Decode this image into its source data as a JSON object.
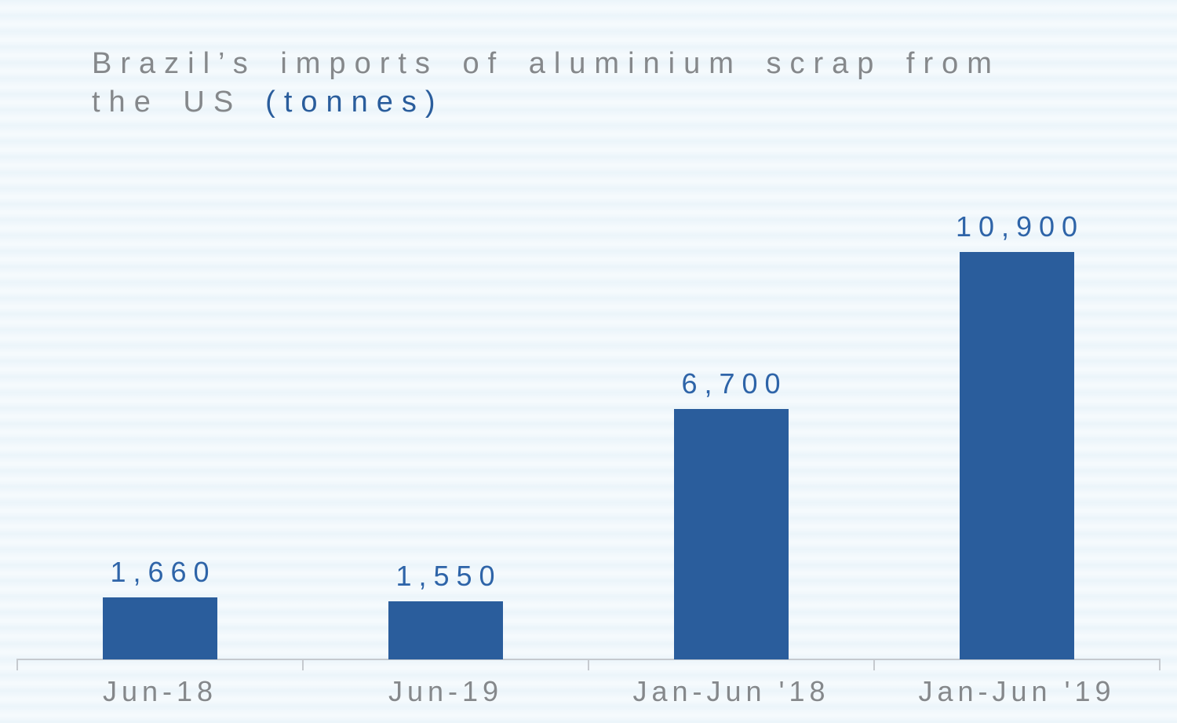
{
  "title": {
    "line1": "Brazil’s imports of aluminium scrap from",
    "line2_prefix": "the US",
    "unit": "(tonnes)"
  },
  "colors": {
    "background": "#f5fafd",
    "bar": "#2a5d9c",
    "value_label": "#2e64a8",
    "title_gray": "#85888b",
    "unit_blue": "#2a5d9c",
    "axis": "#c6cacf"
  },
  "chart_data": {
    "type": "bar",
    "title": "Brazil’s imports of aluminium scrap from the US (tonnes)",
    "categories": [
      "Jun-18",
      "Jun-19",
      "Jan-Jun '18",
      "Jan-Jun '19"
    ],
    "values": [
      1660,
      1550,
      6700,
      10900
    ],
    "value_labels": [
      "1,660",
      "1,550",
      "6,700",
      "10,900"
    ],
    "xlabel": "",
    "ylabel": "tonnes",
    "ylim": [
      0,
      11500
    ],
    "grid": false,
    "legend": null,
    "y_axis_shown": false,
    "data_labels_position": "above-bar"
  }
}
